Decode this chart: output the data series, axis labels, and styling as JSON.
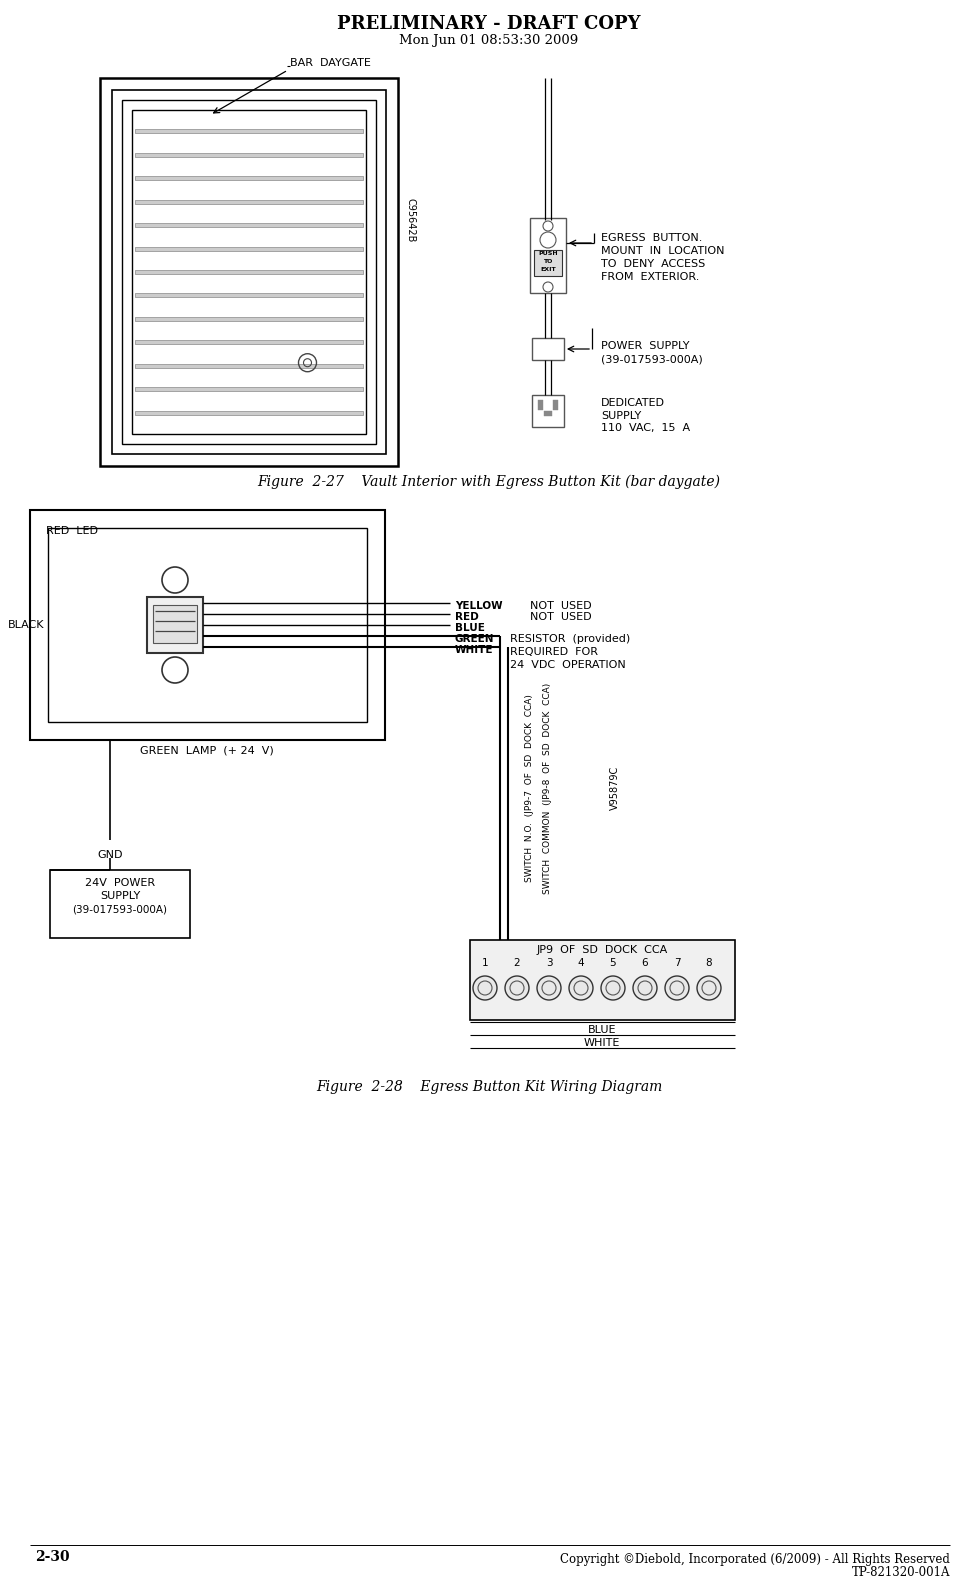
{
  "header_title": "PRELIMINARY - DRAFT COPY",
  "header_subtitle": "Mon Jun 01 08:53:30 2009",
  "fig1_caption": "Figure  2-27    Vault Interior with Egress Button Kit (bar daygate)",
  "fig2_caption": "Figure  2-28    Egress Button Kit Wiring Diagram",
  "footer_left": "2-30",
  "footer_right1": "Copyright ©Diebold, Incorporated (6/2009) - All Rights Reserved",
  "footer_right2": "TP-821320-001A",
  "bg_color": "#ffffff"
}
